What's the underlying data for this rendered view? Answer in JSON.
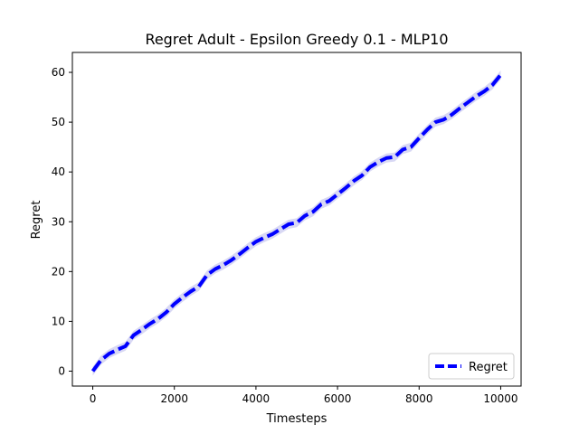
{
  "chart_data": {
    "type": "line",
    "title": "Regret Adult - Epsilon Greedy 0.1 - MLP10",
    "xlabel": "Timesteps",
    "ylabel": "Regret",
    "xlim": [
      -500,
      10500
    ],
    "ylim": [
      -3,
      64
    ],
    "xticks": [
      0,
      2000,
      4000,
      6000,
      8000,
      10000
    ],
    "yticks": [
      0,
      10,
      20,
      30,
      40,
      50,
      60
    ],
    "grid": false,
    "legend_position": "lower right",
    "series": [
      {
        "name": "Regret",
        "color": "#0000ff",
        "band_color": "#c8c8f0",
        "linestyle": "dashed",
        "x": [
          0,
          200,
          400,
          600,
          800,
          1000,
          1200,
          1400,
          1600,
          1800,
          2000,
          2200,
          2400,
          2600,
          2800,
          3000,
          3200,
          3400,
          3600,
          3800,
          4000,
          4200,
          4400,
          4600,
          4800,
          5000,
          5200,
          5400,
          5600,
          5800,
          6000,
          6200,
          6400,
          6600,
          6800,
          7000,
          7200,
          7400,
          7600,
          7800,
          8000,
          8200,
          8400,
          8600,
          8800,
          9000,
          9200,
          9400,
          9600,
          9800,
          10000
        ],
        "y": [
          0,
          2.2,
          3.5,
          4.3,
          5.0,
          7.2,
          8.3,
          9.5,
          10.5,
          11.8,
          13.5,
          14.8,
          16.0,
          17.0,
          19.3,
          20.5,
          21.3,
          22.3,
          23.5,
          24.8,
          26.0,
          26.8,
          27.5,
          28.5,
          29.5,
          29.8,
          31.2,
          32.0,
          33.5,
          34.2,
          35.5,
          36.8,
          38.2,
          39.3,
          41.0,
          42.0,
          42.8,
          43.0,
          44.5,
          45.0,
          46.8,
          48.5,
          50.0,
          50.5,
          51.5,
          52.8,
          54.0,
          55.2,
          56.2,
          57.5,
          59.5
        ],
        "band_halfwidth": 0.9
      }
    ]
  }
}
